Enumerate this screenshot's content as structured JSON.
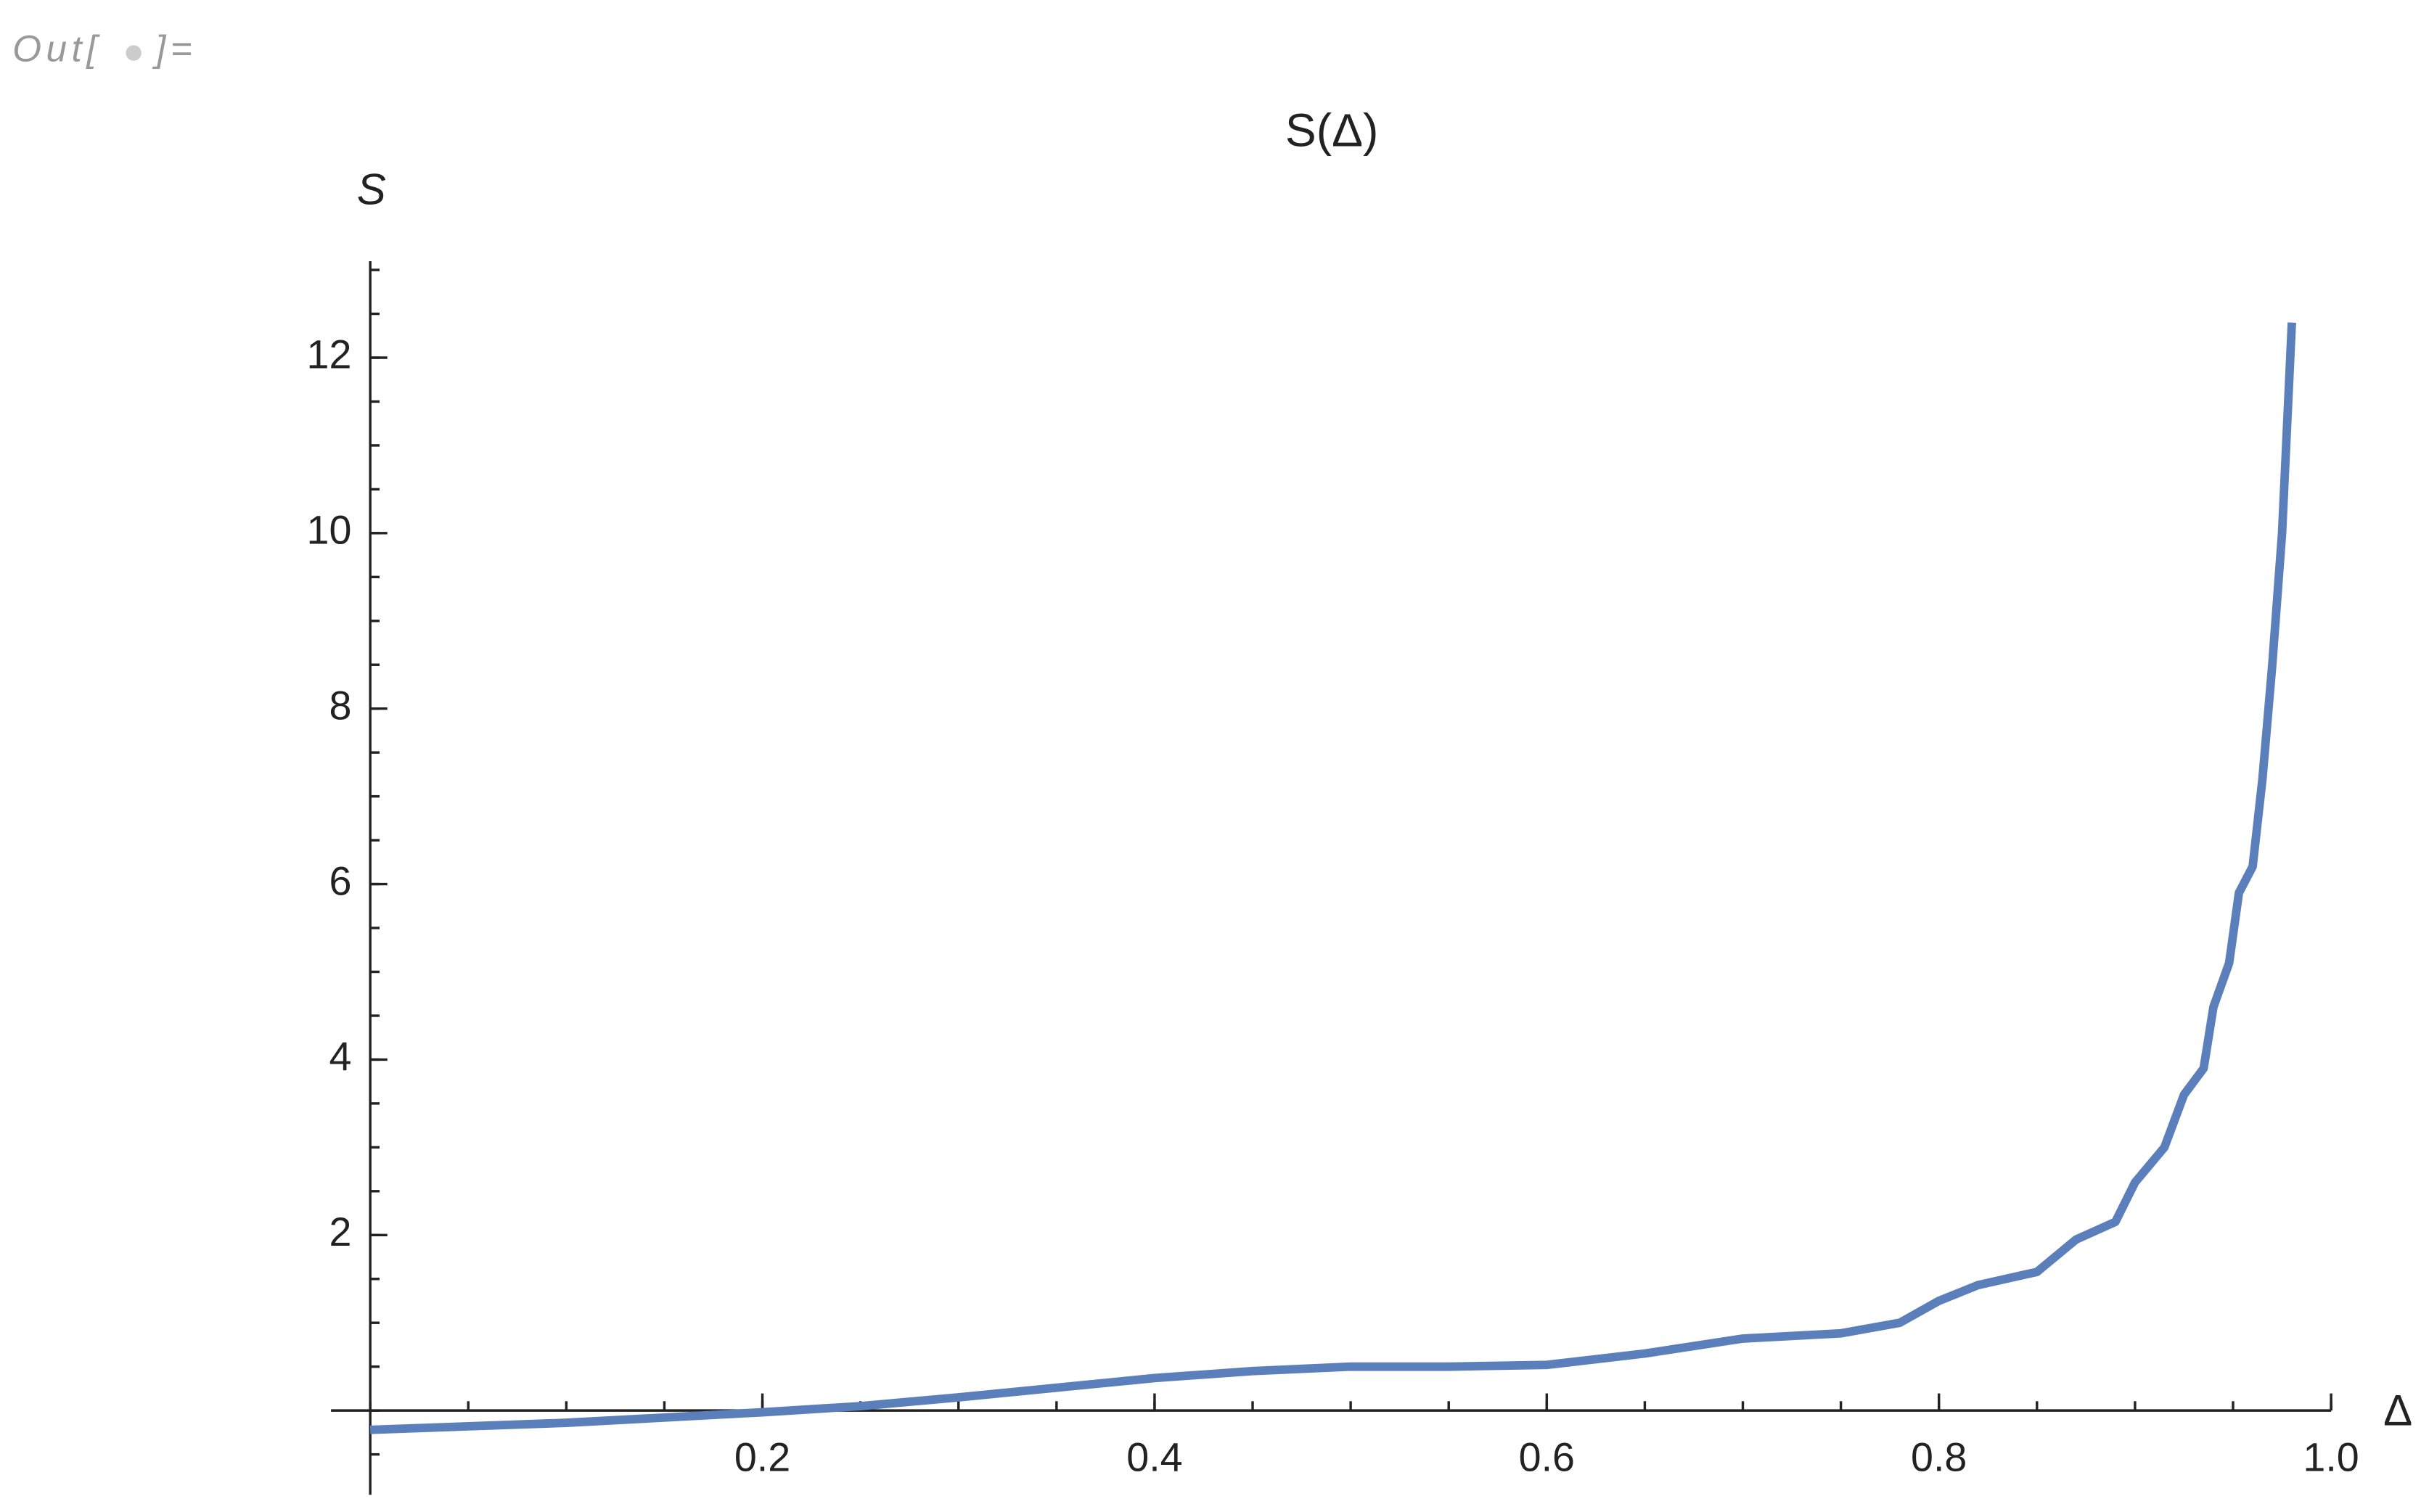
{
  "out_label": {
    "prefix": "Out[",
    "suffix": "]="
  },
  "chart_data": {
    "type": "line",
    "title": "S(Δ)",
    "x_label": "Δ",
    "y_label": "S",
    "x": [
      0,
      0.1,
      0.2,
      0.25,
      0.3,
      0.35,
      0.4,
      0.45,
      0.5,
      0.55,
      0.6,
      0.65,
      0.7,
      0.75,
      0.78,
      0.8,
      0.82,
      0.85,
      0.87,
      0.89,
      0.9,
      0.915,
      0.925,
      0.935,
      0.94,
      0.948,
      0.953,
      0.96,
      0.965,
      0.97,
      0.975,
      0.98
    ],
    "series": [
      {
        "name": "S",
        "color": "#5b7fba",
        "values": [
          -0.22,
          -0.14,
          -0.02,
          0.05,
          0.15,
          0.26,
          0.37,
          0.45,
          0.5,
          0.5,
          0.52,
          0.65,
          0.82,
          0.88,
          1.0,
          1.25,
          1.43,
          1.58,
          1.95,
          2.15,
          2.6,
          3.0,
          3.6,
          3.9,
          4.6,
          5.1,
          5.9,
          6.2,
          7.2,
          8.5,
          10.0,
          12.4
        ]
      }
    ],
    "xlim": [
      -0.02,
      1.0
    ],
    "ylim": [
      -0.96,
      13.1
    ],
    "xticks": [
      0.2,
      0.4,
      0.6,
      0.8,
      {
        "value": 1,
        "label": "1.0"
      }
    ],
    "yticks": [
      2,
      4,
      6,
      8,
      10,
      12
    ]
  }
}
